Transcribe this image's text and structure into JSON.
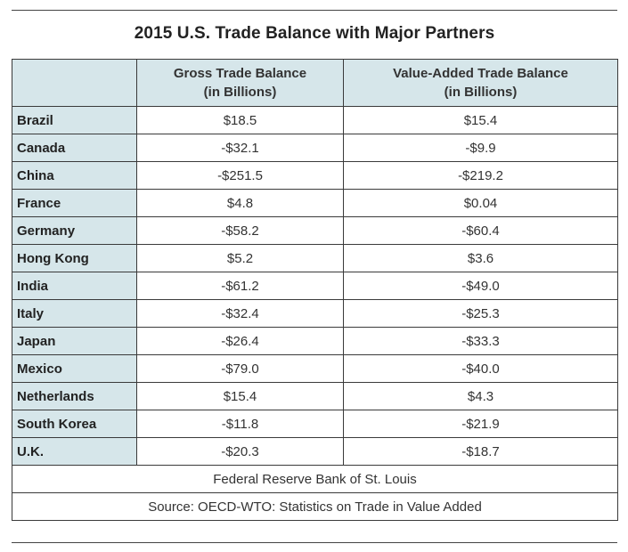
{
  "title": "2015 U.S. Trade Balance with Major Partners",
  "chart_data": {
    "type": "table",
    "title": "2015 U.S. Trade Balance with Major Partners",
    "columns": [
      {
        "line1": "Gross Trade Balance",
        "line2": "(in Billions)"
      },
      {
        "line1": "Value-Added Trade Balance",
        "line2": "(in Billions)"
      }
    ],
    "rows": [
      {
        "country": "Brazil",
        "gross": "$18.5",
        "value_added": "$15.4"
      },
      {
        "country": "Canada",
        "gross": "-$32.1",
        "value_added": "-$9.9"
      },
      {
        "country": "China",
        "gross": "-$251.5",
        "value_added": "-$219.2"
      },
      {
        "country": "France",
        "gross": "$4.8",
        "value_added": "$0.04"
      },
      {
        "country": "Germany",
        "gross": "-$58.2",
        "value_added": "-$60.4"
      },
      {
        "country": "Hong Kong",
        "gross": "$5.2",
        "value_added": "$3.6"
      },
      {
        "country": "India",
        "gross": "-$61.2",
        "value_added": "-$49.0"
      },
      {
        "country": "Italy",
        "gross": "-$32.4",
        "value_added": "-$25.3"
      },
      {
        "country": "Japan",
        "gross": "-$26.4",
        "value_added": "-$33.3"
      },
      {
        "country": "Mexico",
        "gross": "-$79.0",
        "value_added": "-$40.0"
      },
      {
        "country": "Netherlands",
        "gross": "$15.4",
        "value_added": "$4.3"
      },
      {
        "country": "South Korea",
        "gross": "-$11.8",
        "value_added": "-$21.9"
      },
      {
        "country": "U.K.",
        "gross": "-$20.3",
        "value_added": "-$18.7"
      }
    ],
    "credit": "Federal Reserve Bank of St. Louis",
    "source": "Source: OECD-WTO: Statistics on Trade in Value Added"
  },
  "colors": {
    "header_background": "#d6e6ea",
    "border": "#3a3a3a",
    "text": "#222222"
  }
}
